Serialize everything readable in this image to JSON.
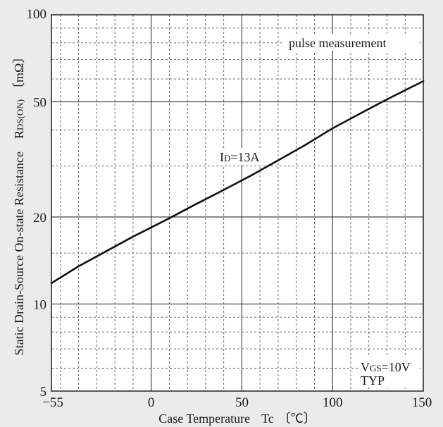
{
  "chart_data": {
    "type": "line",
    "title": "",
    "xlabel": "Case Temperature",
    "xlabel_symbol": "Tc",
    "xlabel_unit": "〔℃〕",
    "ylabel": "Static Drain-Source On-state Resistance",
    "ylabel_symbol_main": "R",
    "ylabel_symbol_sub": "DS(ON)",
    "ylabel_unit": "〔mΩ〕",
    "xlim": [
      -55,
      150
    ],
    "ylim": [
      5,
      100
    ],
    "yscale": "log",
    "x_ticks": [
      -55,
      0,
      50,
      100,
      150
    ],
    "x_tick_labels": [
      "−55",
      "0",
      "50",
      "100",
      "150"
    ],
    "y_ticks": [
      5,
      10,
      20,
      50,
      100
    ],
    "y_tick_labels": [
      "5",
      "10",
      "20",
      "50",
      "100"
    ],
    "grid": true,
    "series": [
      {
        "name": "ID=13A",
        "label_main": "I",
        "label_sub": "D",
        "label_value": "=13A",
        "color": "#111111",
        "x": [
          -55,
          -40,
          -25,
          -10,
          0,
          10,
          25,
          40,
          55,
          70,
          85,
          100,
          115,
          130,
          150
        ],
        "y": [
          11.8,
          13.5,
          15.2,
          17.1,
          18.4,
          19.8,
          22.2,
          24.8,
          27.8,
          31.4,
          35.5,
          40.5,
          45.5,
          51.0,
          59.0
        ]
      }
    ],
    "annotations": {
      "measurement": "pulse measurement",
      "vgs_main": "V",
      "vgs_sub": "GS",
      "vgs_value": "=10V",
      "typ": "TYP"
    }
  }
}
